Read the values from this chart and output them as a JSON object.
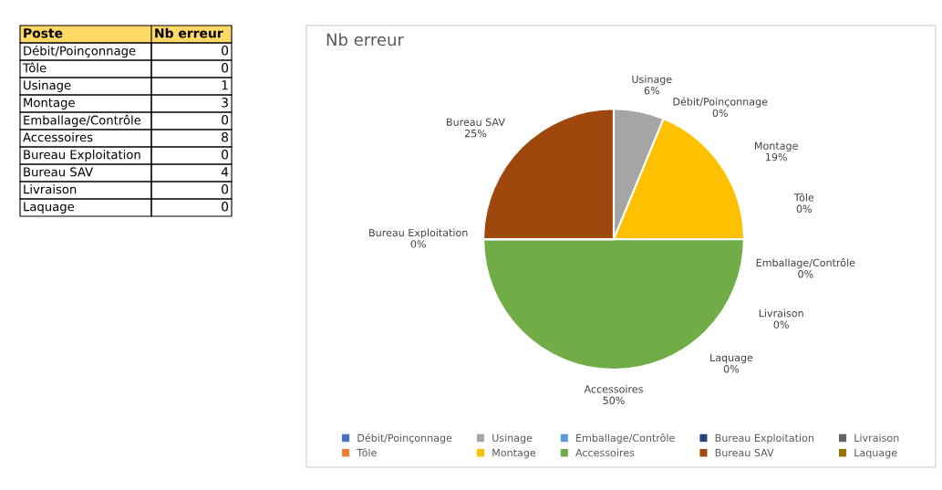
{
  "chart_data": [
    {
      "type": "other",
      "categories": [
        "Débit/Poinçonnage",
        "Tôle",
        "Usinage",
        "Montage",
        "Emballage/Contrôle",
        "Accessoires",
        "Bureau Exploitation",
        "Bureau SAV",
        "Livraison",
        "Laquage"
      ],
      "values": [
        0,
        0,
        1,
        3,
        0,
        8,
        0,
        4,
        0,
        0
      ],
      "annotations": [
        "Poste",
        "Nb erreur"
      ],
      "data_labels": true
    },
    {
      "type": "pie",
      "title": "Nb erreur",
      "categories": [
        "Débit/Poinçonnage",
        "Tôle",
        "Usinage",
        "Montage",
        "Emballage/Contrôle",
        "Accessoires",
        "Bureau Exploitation",
        "Bureau SAV",
        "Livraison",
        "Laquage"
      ],
      "values": [
        0,
        0,
        6.25,
        18.75,
        0,
        50,
        0,
        25,
        0,
        0
      ],
      "value_labels": [
        "0%",
        "0%",
        "6%",
        "19%",
        "0%",
        "50%",
        "0%",
        "25%",
        "0%",
        "0%"
      ],
      "colors": [
        "#4472c4",
        "#ed7d31",
        "#a5a5a5",
        "#ffc000",
        "#5b9bd5",
        "#70ad47",
        "#264478",
        "#9e480e",
        "#636363",
        "#997300"
      ],
      "legend": "bottom"
    }
  ]
}
